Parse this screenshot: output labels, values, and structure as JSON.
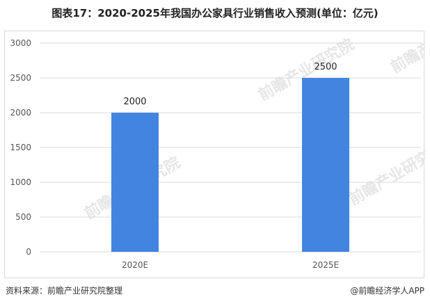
{
  "title": "图表17：2020-2025年我国办公家具行业销售收入预测(单位：亿元)",
  "watermark_text": "前瞻产业研究院",
  "footer": {
    "source": "资料来源：前瞻产业研究院整理",
    "brand": "@前瞻经济学人APP"
  },
  "colors": {
    "bar": "#4285e0",
    "grid": "#d9d9d9"
  },
  "chart_data": {
    "type": "bar",
    "title": "图表17：2020-2025年我国办公家具行业销售收入预测(单位：亿元)",
    "categories": [
      "2020E",
      "2025E"
    ],
    "values": [
      2000,
      2500
    ],
    "data_labels": [
      "2000",
      "2500"
    ],
    "yticks": [
      "0",
      "500",
      "1000",
      "1500",
      "2000",
      "2500",
      "3000"
    ],
    "ylim": [
      0,
      3000
    ],
    "xlabel": "",
    "ylabel": "",
    "grid": true,
    "legend": "none"
  }
}
